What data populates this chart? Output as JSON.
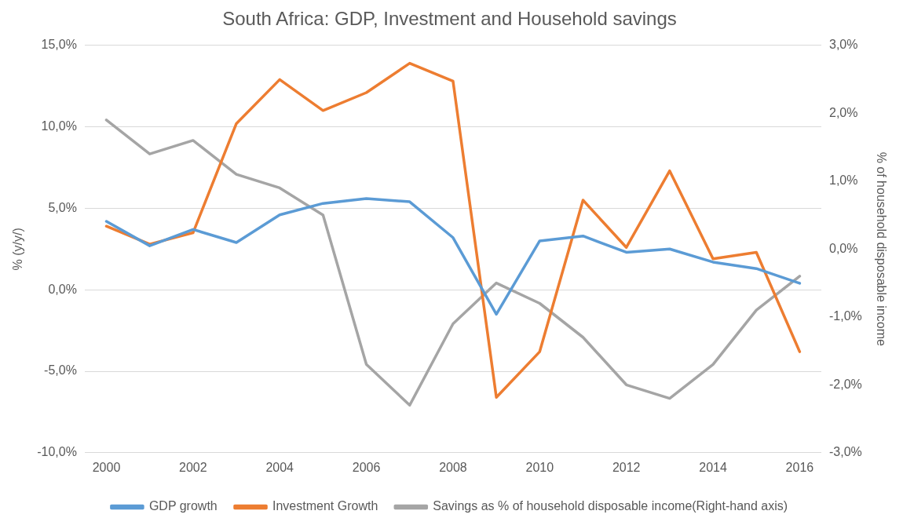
{
  "chart_data": {
    "type": "line",
    "title": "South Africa: GDP, Investment and Household savings",
    "ylabel": "% (y/y/)",
    "y2label": "% of household disposable income",
    "x": [
      2000,
      2001,
      2002,
      2003,
      2004,
      2005,
      2006,
      2007,
      2008,
      2009,
      2010,
      2011,
      2012,
      2013,
      2014,
      2015,
      2016
    ],
    "xlim": [
      1999.5,
      2016.5
    ],
    "xticks": [
      2000,
      2002,
      2004,
      2006,
      2008,
      2010,
      2012,
      2014,
      2016
    ],
    "ylim": [
      -10,
      15
    ],
    "yticks": [
      {
        "value": -10,
        "label": "-10,0%"
      },
      {
        "value": -5,
        "label": "-5,0%"
      },
      {
        "value": 0,
        "label": "0,0%"
      },
      {
        "value": 5,
        "label": "5,0%"
      },
      {
        "value": 10,
        "label": "10,0%"
      },
      {
        "value": 15,
        "label": "15,0%"
      }
    ],
    "y2lim": [
      -3,
      3
    ],
    "y2ticks": [
      {
        "value": -3,
        "label": "-3,0%"
      },
      {
        "value": -2,
        "label": "-2,0%"
      },
      {
        "value": -1,
        "label": "-1,0%"
      },
      {
        "value": 0,
        "label": "0,0%"
      },
      {
        "value": 1,
        "label": "1,0%"
      },
      {
        "value": 2,
        "label": "2,0%"
      },
      {
        "value": 3,
        "label": "3,0%"
      }
    ],
    "series": [
      {
        "name": "GDP growth",
        "color": "#5b9bd5",
        "values": [
          4.2,
          2.7,
          3.7,
          2.9,
          4.6,
          5.3,
          5.6,
          5.4,
          3.2,
          -1.5,
          3.0,
          3.3,
          2.3,
          2.5,
          1.7,
          1.3,
          0.4
        ]
      },
      {
        "name": "Investment Growth",
        "color": "#ed7d31",
        "values": [
          3.9,
          2.8,
          3.5,
          10.2,
          12.9,
          11.0,
          12.1,
          13.9,
          12.8,
          -6.6,
          -3.8,
          5.5,
          2.6,
          7.3,
          1.9,
          2.3,
          -3.8
        ]
      },
      {
        "name": "Savings as % of household disposable income(Right-hand axis)",
        "color": "#a5a5a5",
        "axis": "y2",
        "values": [
          1.9,
          1.4,
          1.6,
          1.1,
          0.9,
          0.5,
          -1.7,
          -2.3,
          -1.1,
          -0.5,
          -0.8,
          -1.3,
          -2.0,
          -2.2,
          -1.7,
          -0.9,
          -0.4
        ]
      }
    ],
    "grid": "y",
    "legend": "bottom",
    "marker": "none",
    "line_style": "solid"
  }
}
